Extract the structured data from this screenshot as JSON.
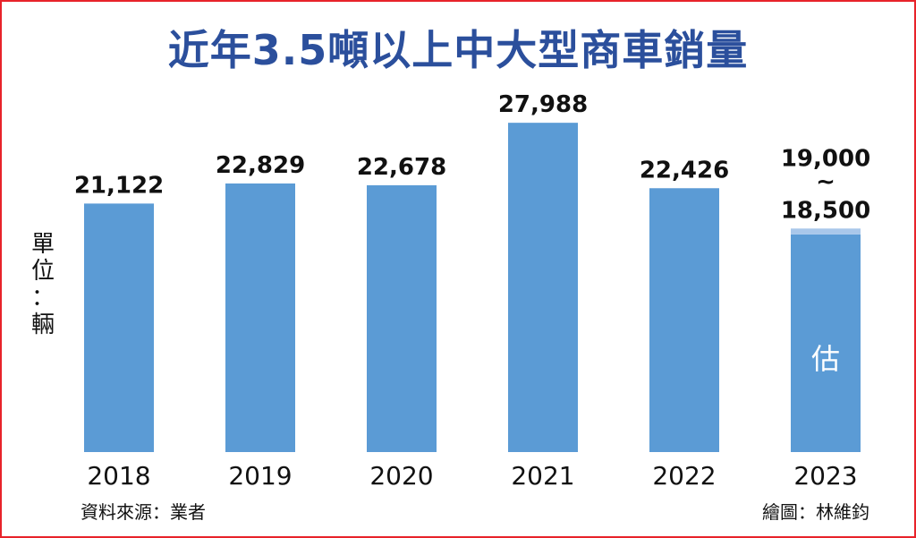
{
  "title": "近年3.5噸以上中大型商車銷量",
  "unit_label": "單\n位\n：\n輛",
  "source": "資料來源：業者",
  "credit": "繪圖：林維鈞",
  "colors": {
    "bar": "#5b9bd5",
    "range_band": "#a9c7ea",
    "title": "#2b4f9c",
    "border": "#e8232a"
  },
  "chart_data": {
    "type": "bar",
    "categories": [
      "2018",
      "2019",
      "2020",
      "2021",
      "2022",
      "2023"
    ],
    "values": [
      21122,
      22829,
      22678,
      27988,
      22426,
      18500
    ],
    "value_labels": [
      "21,122",
      "22,829",
      "22,678",
      "27,988",
      "22,426",
      "18,500"
    ],
    "estimate": {
      "category": "2023",
      "low": 18500,
      "high": 19000,
      "high_label": "19,000",
      "tilde": "~",
      "low_label": "18,500",
      "marker": "估"
    },
    "title": "近年3.5噸以上中大型商車銷量",
    "ylabel": "單位：輛",
    "ylim": [
      0,
      28000
    ]
  }
}
